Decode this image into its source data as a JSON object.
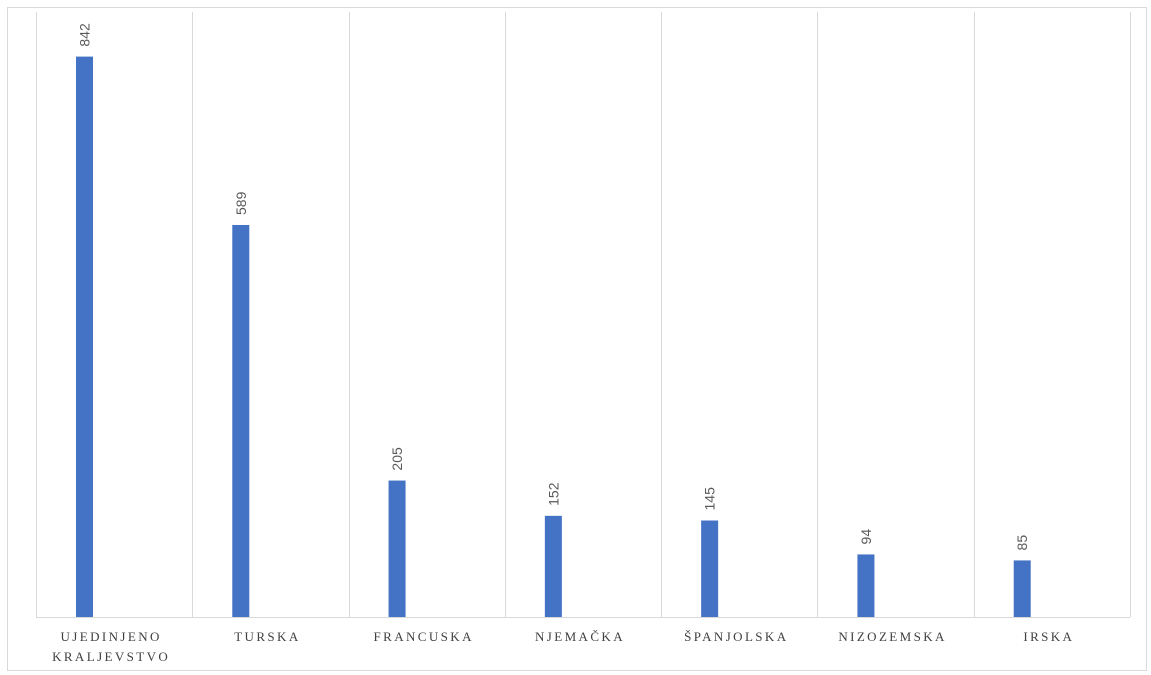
{
  "chart_data": {
    "type": "bar",
    "categories": [
      [
        "UJEDINJENO",
        "KRALJEVSTVO"
      ],
      [
        "TURSKA"
      ],
      [
        "FRANCUSKA"
      ],
      [
        "NJEMAČKA"
      ],
      [
        "ŠPANJOLSKA"
      ],
      [
        "NIZOZEMSKA"
      ],
      [
        "IRSKA"
      ]
    ],
    "values": [
      842,
      589,
      205,
      152,
      145,
      94,
      85
    ],
    "data_labels": [
      "842",
      "589",
      "205",
      "152",
      "145",
      "94",
      "85"
    ],
    "title": "",
    "xlabel": "",
    "ylabel": "",
    "ylim": [
      0,
      900
    ],
    "grid": "vertical category separators",
    "legend": "none",
    "bar_color": "#4472c4",
    "grid_color": "#d9d9d9"
  }
}
